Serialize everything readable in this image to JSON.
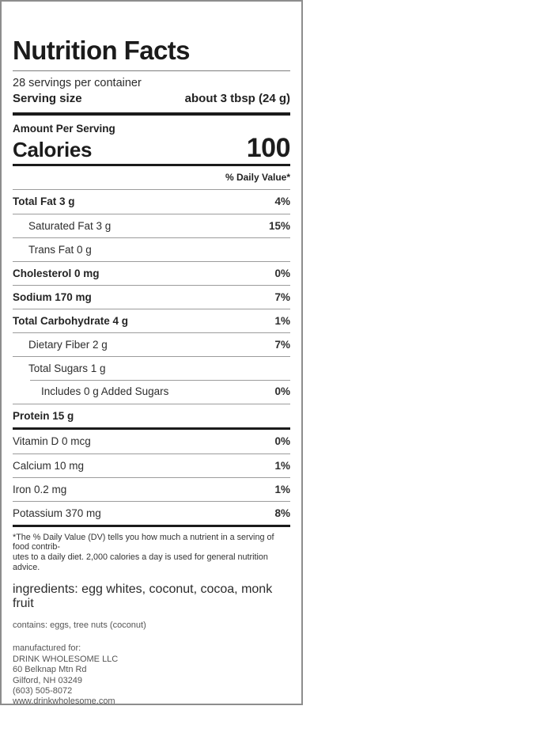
{
  "label": {
    "title": "Nutrition Facts",
    "servings_per_container": "28 servings per container",
    "serving_size_label": "Serving size",
    "serving_size_value": "about 3 tbsp (24 g)",
    "amount_per_serving": "Amount Per Serving",
    "calories_label": "Calories",
    "calories_value": "100",
    "daily_value_header": "% Daily Value*",
    "nutrients": [
      {
        "name": "Total Fat 3 g",
        "dv": "4%",
        "bold": true,
        "indent": 0
      },
      {
        "name": "Saturated Fat 3 g",
        "dv": "15%",
        "bold": false,
        "indent": 1
      },
      {
        "name": "Trans Fat 0 g",
        "dv": "",
        "bold": false,
        "indent": 1
      },
      {
        "name": "Cholesterol 0 mg",
        "dv": "0%",
        "bold": true,
        "indent": 0
      },
      {
        "name": "Sodium 170 mg",
        "dv": "7%",
        "bold": true,
        "indent": 0
      },
      {
        "name": "Total Carbohydrate 4 g",
        "dv": "1%",
        "bold": true,
        "indent": 0
      },
      {
        "name": "Dietary Fiber 2 g",
        "dv": "7%",
        "bold": false,
        "indent": 1
      },
      {
        "name": "Total Sugars 1 g",
        "dv": "",
        "bold": false,
        "indent": 1
      },
      {
        "name": "Includes 0 g Added Sugars",
        "dv": "0%",
        "bold": false,
        "indent": 2,
        "indent_rule": true
      },
      {
        "name": "Protein 15 g",
        "dv": "",
        "bold": true,
        "indent": 0
      }
    ],
    "vitamins": [
      {
        "name": "Vitamin D 0 mcg",
        "dv": "0%"
      },
      {
        "name": "Calcium 10 mg",
        "dv": "1%"
      },
      {
        "name": "Iron 0.2 mg",
        "dv": "1%"
      },
      {
        "name": "Potassium 370 mg",
        "dv": "8%"
      }
    ],
    "footnote_line1": "*The % Daily Value (DV) tells you how much a nutrient in a serving of food contrib-",
    "footnote_line2": "utes to a daily diet. 2,000 calories a day is used for general nutrition advice.",
    "ingredients": "ingredients: egg whites, coconut, cocoa, monk fruit",
    "contains": "contains: eggs, tree nuts (coconut)",
    "manufactured_lines": [
      "manufactured for:",
      "DRINK WHOLESOME LLC",
      "60 Belknap Mtn Rd",
      "Gilford, NH 03249",
      "(603) 505-8072",
      "www.drinkwholesome.com"
    ]
  },
  "colors": {
    "text": "#2a2a2a",
    "bar": "#1b1b1b",
    "hairline": "#9c9c9c",
    "box_border": "#8d8d8d",
    "muted_text": "#555555"
  }
}
